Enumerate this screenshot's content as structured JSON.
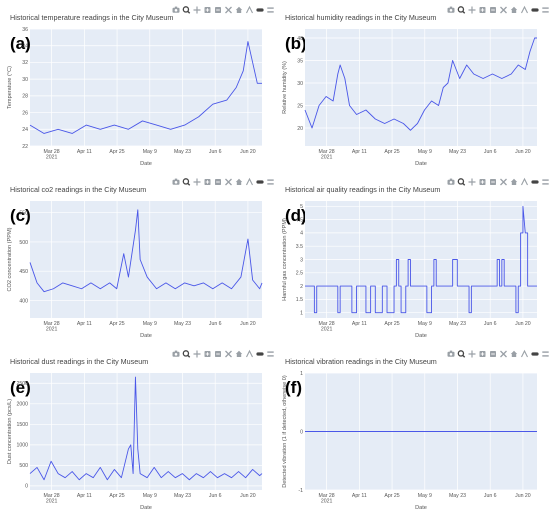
{
  "toolbar": {
    "icons": [
      "camera-icon",
      "zoom-icon",
      "pan-icon",
      "zoom-in-icon",
      "zoom-out-icon",
      "autoscale-icon",
      "home-icon",
      "spike-lines-icon",
      "hover-closest-icon",
      "hover-compare-icon"
    ]
  },
  "colors": {
    "line": "#4a57e8",
    "plot_bg": "#e5ecf6",
    "grid": "#ffffff"
  },
  "chart_data": [
    {
      "tag": "(a)",
      "type": "line",
      "title": "Historical temperature readings in the City Museum",
      "xlabel": "Date",
      "ylabel": "Temperature (°C)",
      "xrange": [
        "2021-03-17",
        "2021-06-23"
      ],
      "xticks": [
        "Mar 28\n2021",
        "Apr 11",
        "Apr 25",
        "May 9",
        "May 23",
        "Jun 6",
        "Jun 20"
      ],
      "ylim": [
        22,
        36
      ],
      "yticks": [
        22,
        24,
        26,
        28,
        30,
        32,
        34,
        36
      ],
      "series": [
        {
          "values": [
            [
              0,
              24.5
            ],
            [
              6,
              23.5
            ],
            [
              12,
              24
            ],
            [
              18,
              23.5
            ],
            [
              24,
              24.5
            ],
            [
              30,
              24
            ],
            [
              36,
              24.5
            ],
            [
              42,
              24
            ],
            [
              48,
              25
            ],
            [
              54,
              24.5
            ],
            [
              60,
              24
            ],
            [
              66,
              24.5
            ],
            [
              72,
              25.5
            ],
            [
              78,
              27
            ],
            [
              84,
              27.5
            ],
            [
              88,
              29
            ],
            [
              91,
              31
            ],
            [
              93,
              34.5
            ],
            [
              95,
              32
            ],
            [
              97,
              29.5
            ],
            [
              99,
              29.5
            ]
          ]
        }
      ]
    },
    {
      "tag": "(b)",
      "type": "line",
      "title": "Historical humidity readings in the City Museum",
      "xlabel": "Date",
      "ylabel": "Relative humidity (%)",
      "xrange": [
        "2021-03-17",
        "2021-06-23"
      ],
      "xticks": [
        "Mar 28\n2021",
        "Apr 11",
        "Apr 25",
        "May 9",
        "May 23",
        "Jun 6",
        "Jun 20"
      ],
      "ylim": [
        16,
        42
      ],
      "yticks": [
        20,
        25,
        30,
        35,
        40
      ],
      "series": [
        {
          "values": [
            [
              0,
              24
            ],
            [
              3,
              20
            ],
            [
              6,
              25
            ],
            [
              9,
              27
            ],
            [
              12,
              26
            ],
            [
              14,
              32
            ],
            [
              15,
              34
            ],
            [
              17,
              31
            ],
            [
              19,
              25
            ],
            [
              22,
              23
            ],
            [
              26,
              24
            ],
            [
              30,
              22
            ],
            [
              34,
              21
            ],
            [
              38,
              22
            ],
            [
              42,
              21
            ],
            [
              45,
              19.5
            ],
            [
              48,
              21
            ],
            [
              51,
              24
            ],
            [
              54,
              26
            ],
            [
              57,
              25
            ],
            [
              59,
              29
            ],
            [
              61,
              30
            ],
            [
              63,
              35
            ],
            [
              66,
              31
            ],
            [
              69,
              34
            ],
            [
              72,
              32
            ],
            [
              76,
              31
            ],
            [
              80,
              32
            ],
            [
              84,
              31
            ],
            [
              88,
              32
            ],
            [
              91,
              34
            ],
            [
              94,
              33
            ],
            [
              96,
              37
            ],
            [
              98,
              40
            ],
            [
              99,
              40
            ]
          ]
        }
      ]
    },
    {
      "tag": "(c)",
      "type": "line",
      "title": "Historical co2 readings in the City Museum",
      "xlabel": "Date",
      "ylabel": "CO2 concentration (PPM)",
      "xrange": [
        "2021-03-17",
        "2021-06-23"
      ],
      "xticks": [
        "Mar 28\n2021",
        "Apr 11",
        "Apr 25",
        "May 9",
        "May 23",
        "Jun 6",
        "Jun 20"
      ],
      "ylim": [
        370,
        570
      ],
      "yticks": [
        400,
        450,
        500,
        550
      ],
      "series": [
        {
          "values": [
            [
              0,
              465
            ],
            [
              3,
              430
            ],
            [
              6,
              415
            ],
            [
              10,
              420
            ],
            [
              14,
              430
            ],
            [
              18,
              425
            ],
            [
              22,
              420
            ],
            [
              26,
              430
            ],
            [
              30,
              420
            ],
            [
              34,
              430
            ],
            [
              37,
              420
            ],
            [
              40,
              480
            ],
            [
              42,
              440
            ],
            [
              45,
              520
            ],
            [
              46,
              555
            ],
            [
              47,
              470
            ],
            [
              50,
              440
            ],
            [
              54,
              420
            ],
            [
              58,
              430
            ],
            [
              62,
              420
            ],
            [
              66,
              430
            ],
            [
              70,
              425
            ],
            [
              74,
              430
            ],
            [
              78,
              420
            ],
            [
              82,
              430
            ],
            [
              86,
              420
            ],
            [
              90,
              440
            ],
            [
              93,
              505
            ],
            [
              95,
              435
            ],
            [
              98,
              420
            ],
            [
              99,
              430
            ]
          ]
        }
      ]
    },
    {
      "tag": "(d)",
      "type": "line",
      "title": "Historical air quality readings in the City Museum",
      "xlabel": "Date",
      "ylabel": "Harmful gas concentration (PPM)",
      "xrange": [
        "2021-03-17",
        "2021-06-23"
      ],
      "xticks": [
        "Mar 28\n2021",
        "Apr 11",
        "Apr 25",
        "May 9",
        "May 23",
        "Jun 6",
        "Jun 20"
      ],
      "ylim": [
        0.8,
        5.2
      ],
      "yticks": [
        1,
        1.5,
        2,
        2.5,
        3,
        3.5,
        4,
        4.5,
        5
      ],
      "series": [
        {
          "values": [
            [
              0,
              2
            ],
            [
              4,
              2
            ],
            [
              4,
              1
            ],
            [
              5,
              1
            ],
            [
              5,
              2
            ],
            [
              14,
              2
            ],
            [
              14,
              1
            ],
            [
              15,
              1
            ],
            [
              15,
              2
            ],
            [
              20,
              2
            ],
            [
              20,
              1
            ],
            [
              22,
              1
            ],
            [
              22,
              2
            ],
            [
              26,
              2
            ],
            [
              26,
              1
            ],
            [
              28,
              1
            ],
            [
              28,
              2
            ],
            [
              30,
              2
            ],
            [
              30,
              1
            ],
            [
              33,
              1
            ],
            [
              33,
              2
            ],
            [
              35,
              2
            ],
            [
              35,
              1
            ],
            [
              38,
              1
            ],
            [
              38,
              2
            ],
            [
              39,
              2
            ],
            [
              39,
              3
            ],
            [
              40,
              3
            ],
            [
              40,
              2
            ],
            [
              41,
              2
            ],
            [
              41,
              1
            ],
            [
              43,
              1
            ],
            [
              43,
              2
            ],
            [
              44,
              2
            ],
            [
              44,
              3
            ],
            [
              45,
              3
            ],
            [
              45,
              2
            ],
            [
              52,
              2
            ],
            [
              52,
              1
            ],
            [
              54,
              1
            ],
            [
              54,
              2
            ],
            [
              55,
              2
            ],
            [
              55,
              3
            ],
            [
              56,
              3
            ],
            [
              56,
              2
            ],
            [
              63,
              2
            ],
            [
              63,
              3
            ],
            [
              65,
              3
            ],
            [
              65,
              2
            ],
            [
              70,
              2
            ],
            [
              70,
              1
            ],
            [
              71,
              1
            ],
            [
              71,
              2
            ],
            [
              82,
              2
            ],
            [
              82,
              3
            ],
            [
              83,
              3
            ],
            [
              83,
              2
            ],
            [
              84,
              2
            ],
            [
              84,
              3
            ],
            [
              85,
              3
            ],
            [
              85,
              2
            ],
            [
              90,
              2
            ],
            [
              90,
              1
            ],
            [
              91,
              1
            ],
            [
              91,
              2
            ],
            [
              92,
              2
            ],
            [
              92,
              4
            ],
            [
              93,
              4
            ],
            [
              93,
              5
            ],
            [
              94,
              4
            ],
            [
              95,
              4
            ],
            [
              95,
              2
            ],
            [
              99,
              2
            ]
          ]
        }
      ]
    },
    {
      "tag": "(e)",
      "type": "line",
      "title": "Historical dust readings in the City Museum",
      "xlabel": "Date",
      "ylabel": "Dust concentration (pcs/L)",
      "xrange": [
        "2021-03-17",
        "2021-06-23"
      ],
      "xticks": [
        "Mar 28\n2021",
        "Apr 11",
        "Apr 25",
        "May 9",
        "May 23",
        "Jun 6",
        "Jun 20"
      ],
      "ylim": [
        -100,
        2750
      ],
      "yticks": [
        0,
        500,
        1000,
        1500,
        2000,
        2500
      ],
      "series": [
        {
          "values": [
            [
              0,
              300
            ],
            [
              3,
              450
            ],
            [
              6,
              150
            ],
            [
              9,
              600
            ],
            [
              12,
              300
            ],
            [
              15,
              200
            ],
            [
              18,
              350
            ],
            [
              21,
              150
            ],
            [
              24,
              300
            ],
            [
              27,
              200
            ],
            [
              30,
              450
            ],
            [
              33,
              150
            ],
            [
              36,
              400
            ],
            [
              39,
              200
            ],
            [
              42,
              900
            ],
            [
              43,
              1000
            ],
            [
              44,
              300
            ],
            [
              45,
              2650
            ],
            [
              46,
              900
            ],
            [
              47,
              300
            ],
            [
              50,
              200
            ],
            [
              53,
              450
            ],
            [
              56,
              200
            ],
            [
              59,
              350
            ],
            [
              62,
              200
            ],
            [
              65,
              300
            ],
            [
              68,
              150
            ],
            [
              71,
              300
            ],
            [
              74,
              200
            ],
            [
              77,
              350
            ],
            [
              80,
              200
            ],
            [
              83,
              300
            ],
            [
              86,
              200
            ],
            [
              89,
              350
            ],
            [
              92,
              200
            ],
            [
              95,
              400
            ],
            [
              98,
              250
            ],
            [
              99,
              300
            ]
          ]
        }
      ]
    },
    {
      "tag": "(f)",
      "type": "line",
      "title": "Historical vibration readings in the City Museum",
      "xlabel": "Date",
      "ylabel": "Detected vibration (1 if detected, otherwise 0)",
      "xrange": [
        "2021-03-17",
        "2021-06-23"
      ],
      "xticks": [
        "Mar 28\n2021",
        "Apr 11",
        "Apr 25",
        "May 9",
        "May 23",
        "Jun 6",
        "Jun 20"
      ],
      "ylim": [
        -1,
        1
      ],
      "yticks": [
        -1,
        0,
        1
      ],
      "series": [
        {
          "values": [
            [
              0,
              0
            ],
            [
              99,
              0
            ]
          ]
        }
      ]
    }
  ]
}
